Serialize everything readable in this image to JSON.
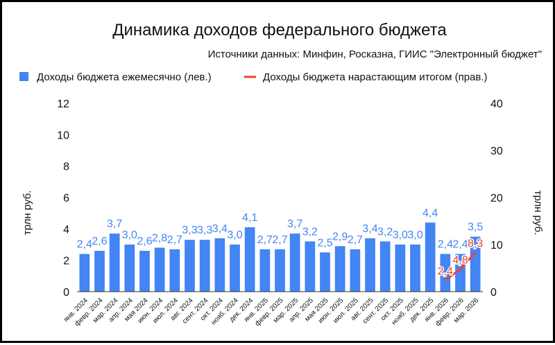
{
  "chart_data": {
    "type": "bar",
    "title": "Динамика доходов федерального бюджета",
    "subtitle": "Источники данных: Минфин, Росказна, ГИИС \"Электронный бюджет\"",
    "ylabel": "трлн руб.",
    "y2label": "трлн руб.",
    "ylim": [
      0,
      12
    ],
    "y2lim": [
      0,
      40
    ],
    "yticks": [
      0,
      2,
      4,
      6,
      8,
      10,
      12
    ],
    "y2ticks": [
      0,
      10,
      20,
      30,
      40
    ],
    "legend_position": "top",
    "grid": false,
    "categories": [
      "янв. 2024",
      "февр. 2024",
      "мар. 2024",
      "апр. 2024",
      "мая 2024",
      "июн. 2024",
      "июл. 2024",
      "авг. 2024",
      "сент. 2024",
      "окт. 2024",
      "нояб. 2024",
      "дек. 2024",
      "янв. 2025",
      "февр. 2025",
      "мар. 2025",
      "апр. 2025",
      "мая 2025",
      "июн. 2025",
      "июл. 2025",
      "авг. 2025",
      "сент. 2025",
      "окт. 2025",
      "нояб. 2025",
      "дек. 2025",
      "янв. 2026",
      "февр. 2026",
      "мар. 2026"
    ],
    "series": [
      {
        "name": "Доходы бюджета ежемесячно (лев.)",
        "type": "bar",
        "axis": "left",
        "color": "#4285F4",
        "values": [
          2.4,
          2.6,
          3.7,
          3.0,
          2.6,
          2.8,
          2.7,
          3.3,
          3.3,
          3.4,
          3.0,
          4.1,
          2.7,
          2.7,
          3.7,
          3.2,
          2.5,
          2.9,
          2.7,
          3.4,
          3.2,
          3.0,
          3.0,
          4.4,
          2.4,
          2.4,
          3.5
        ],
        "labels": [
          "2,4",
          "2,6",
          "3,7",
          "3,0",
          "2,6",
          "2,8",
          "2,7",
          "3,3",
          "3,3",
          "3,4",
          "3,0",
          "4,1",
          "2,7",
          "2,7",
          "3,7",
          "3,2",
          "2,5",
          "2,9",
          "2,7",
          "3,4",
          "3,2",
          "3,0",
          "3,0",
          "4,4",
          "2,4",
          "2,4",
          "3,5"
        ]
      },
      {
        "name": "Доходы бюджета нарастающим итогом (прав.)",
        "type": "line",
        "axis": "right",
        "color": "#EA4335",
        "x": [
          "янв. 2026",
          "февр. 2026",
          "мар. 2026"
        ],
        "values": [
          2.4,
          4.8,
          8.3
        ],
        "labels": [
          "2,4",
          "4,8",
          "8,3"
        ]
      }
    ]
  }
}
